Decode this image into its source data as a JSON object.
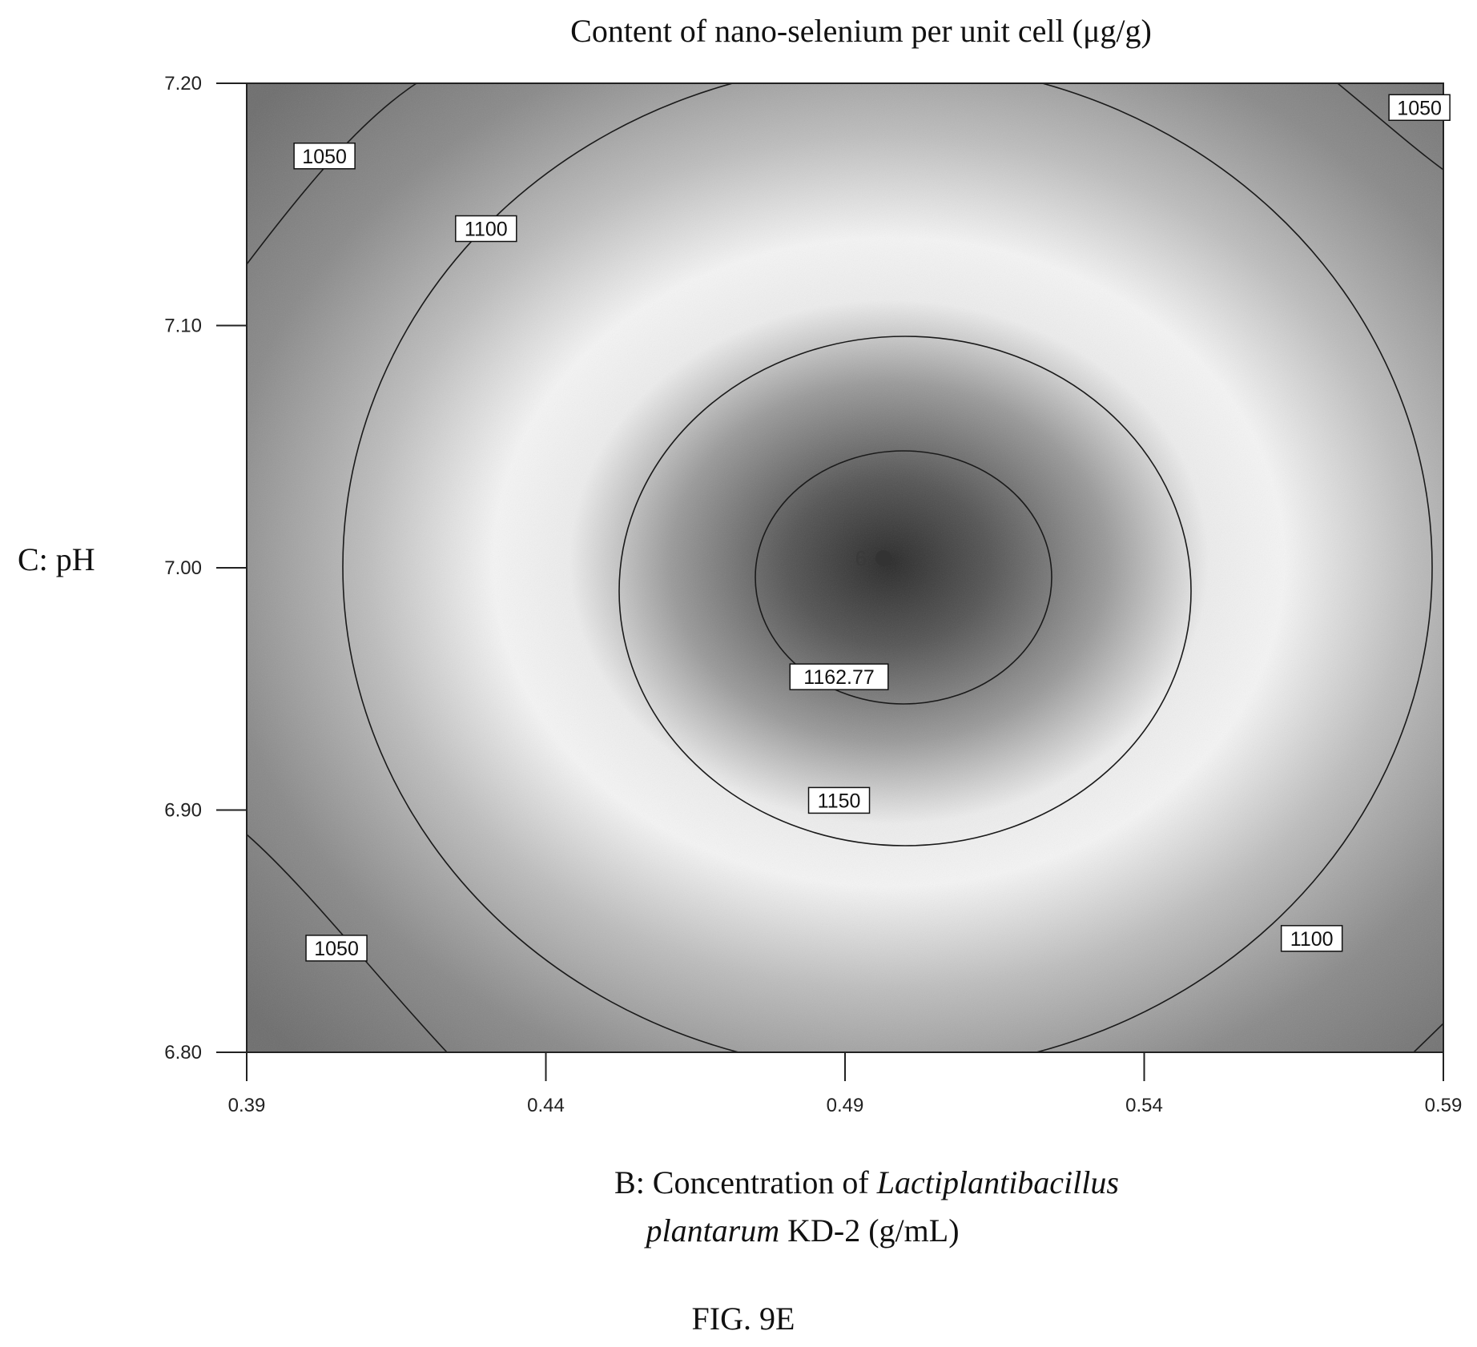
{
  "chart_data": {
    "type": "contour",
    "title": "Content of nano-selenium per unit cell (μg/g)",
    "xlabel_plain": "B: Concentration of",
    "xlabel_italic": "Lactiplantibacillus",
    "xlabel_line2_italic": "plantarum",
    "xlabel_line2_plain": "KD-2 (g/mL)",
    "ylabel": "C: pH",
    "x_ticks": [
      "0.39",
      "0.44",
      "0.49",
      "0.54",
      "0.59"
    ],
    "y_ticks": [
      "7.20",
      "7.10",
      "7.00",
      "6.90",
      "6.80"
    ],
    "xlim": [
      0.39,
      0.59
    ],
    "ylim": [
      6.8,
      7.2
    ],
    "center": {
      "x": 0.496,
      "y": 7.003,
      "value": 1162.77,
      "label": "6",
      "value_label": "1162.77"
    },
    "contours": [
      {
        "level": 1150,
        "label": "1150"
      },
      {
        "level": 1100,
        "label": "1100"
      },
      {
        "level": 1050,
        "label": "1050"
      }
    ],
    "contour_labels": [
      {
        "text": "1050",
        "x": 0.403,
        "y": 7.17
      },
      {
        "text": "1050",
        "x": 0.586,
        "y": 7.19
      },
      {
        "text": "1100",
        "x": 0.43,
        "y": 7.14
      },
      {
        "text": "1162.77",
        "x": 0.489,
        "y": 6.955
      },
      {
        "text": "1150",
        "x": 0.489,
        "y": 6.904
      },
      {
        "text": "1100",
        "x": 0.568,
        "y": 6.847
      },
      {
        "text": "1050",
        "x": 0.405,
        "y": 6.843
      }
    ]
  },
  "figure_label": "FIG. 9E"
}
